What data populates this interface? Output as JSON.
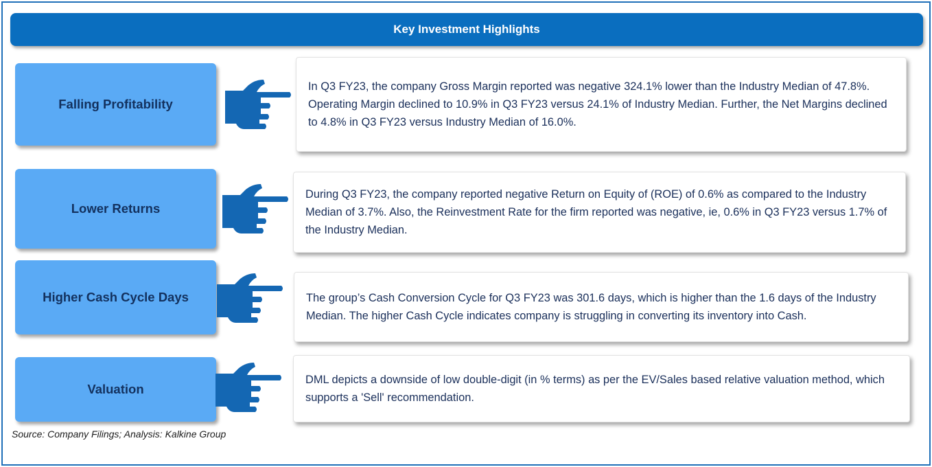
{
  "header": {
    "title": "Key Investment Highlights"
  },
  "highlights": [
    {
      "label": "Falling Profitability",
      "text": "In Q3 FY23, the  company Gross Margin reported was  negative 324.1% lower than the Industry Median of 47.8%. Operating Margin declined to 10.9% in Q3 FY23 versus 24.1% of Industry Median. Further, the Net Margins declined to 4.8% in Q3 FY23  versus Industry Median of 16.0%."
    },
    {
      "label": "Lower Returns",
      "text": "During Q3 FY23, the company reported  negative Return on Equity of (ROE) of 0.6% as compared to the Industry Median of 3.7%. Also, the Reinvestment Rate for the firm reported was negative, ie, 0.6% in Q3 FY23 versus 1.7% of the Industry Median."
    },
    {
      "label": "Higher Cash Cycle Days",
      "text": "The group’s Cash Conversion Cycle for Q3 FY23 was 301.6 days, which is higher than the 1.6 days of the  Industry Median. The higher Cash Cycle indicates company is struggling in converting its inventory into Cash."
    },
    {
      "label": "Valuation",
      "text": "DML  depicts a downside of low double-digit (in % terms) as per the EV/Sales based relative valuation method, which supports a 'Sell' recommendation."
    }
  ],
  "footer": {
    "source": "Source: Company Filings; Analysis: Kalkine Group"
  },
  "colors": {
    "banner": "#0a6ebf",
    "label_box": "#5aaaf5",
    "label_text": "#13315e",
    "hand": "#1467b3",
    "body_text": "#1a2f5a"
  },
  "icons": {
    "pointer": "pointing-hand-icon"
  }
}
